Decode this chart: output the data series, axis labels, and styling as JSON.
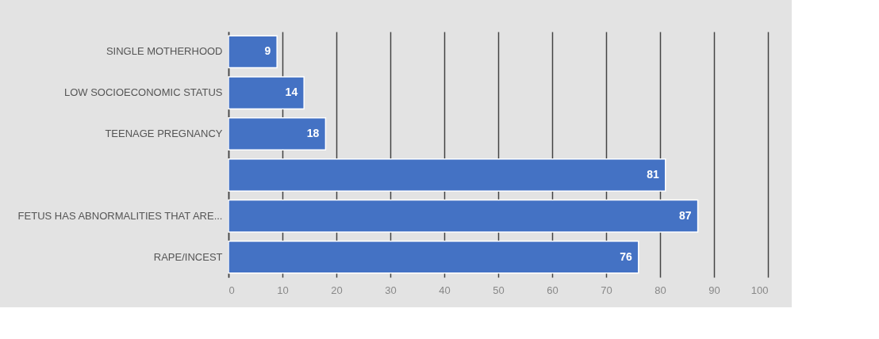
{
  "chart_data": {
    "type": "bar",
    "orientation": "horizontal",
    "categories": [
      "SINGLE MOTHERHOOD",
      "LOW SOCIOECONOMIC STATUS",
      "TEENAGE PREGNANCY",
      null,
      "FETUS HAS ABNORMALITIES THAT ARE...",
      "RAPE/INCEST"
    ],
    "values": [
      9,
      14,
      18,
      81,
      87,
      76
    ],
    "color": "#4472c4",
    "xlim": [
      0,
      100
    ],
    "xticks": [
      0,
      10,
      20,
      30,
      40,
      50,
      60,
      70,
      80,
      90,
      100
    ],
    "grid": "x",
    "data_labels": true
  }
}
